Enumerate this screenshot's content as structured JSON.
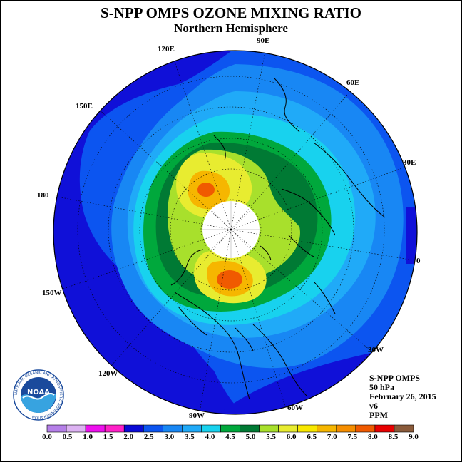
{
  "title": "S-NPP OMPS OZONE MIXING RATIO",
  "subtitle": "Northern Hemisphere",
  "longitude_labels": {
    "lon_90E": "90E",
    "lon_60E": "60E",
    "lon_30E": "30E",
    "lon_0": "0",
    "lon_30W": "30W",
    "lon_60W": "60W",
    "lon_90W": "90W",
    "lon_120W": "120W",
    "lon_150W": "150W",
    "lon_180": "180",
    "lon_150E": "150E",
    "lon_120E": "120E"
  },
  "info": {
    "instrument": "S-NPP OMPS",
    "level": "50 hPa",
    "date": "February 26, 2015",
    "version": "v6",
    "units": "PPM"
  },
  "legend": {
    "labels": [
      "0.0",
      "0.5",
      "1.0",
      "1.5",
      "2.0",
      "2.5",
      "3.0",
      "3.5",
      "4.0",
      "4.5",
      "5.0",
      "5.5",
      "6.0",
      "6.5",
      "7.0",
      "7.5",
      "8.0",
      "8.5",
      "9.0"
    ],
    "colors": [
      "#b57fe8",
      "#dcb2f2",
      "#ee10ee",
      "#ff20c8",
      "#0a0ad6",
      "#0c55f0",
      "#1887f4",
      "#20aaf8",
      "#18d2ee",
      "#00a83c",
      "#007a34",
      "#a8e02c",
      "#e8ec30",
      "#f8e800",
      "#f6b600",
      "#f68e00",
      "#f05a00",
      "#e80000",
      "#8a5a3a"
    ]
  },
  "logo": {
    "text": "NOAA",
    "ring_text": "NATIONAL OCEANIC AND ATMOSPHERIC ADMINISTRATION"
  },
  "map_colors": {
    "bg_deep": "#1010d8",
    "blue_2": "#0c55f0",
    "blue_25": "#1887f4",
    "blue_3": "#20aaf8",
    "cyan": "#18d2ee",
    "green_mid": "#00a83c",
    "green_dark": "#007a34",
    "lime": "#a8e02c",
    "yellow": "#f8e800",
    "orange": "#f6b600",
    "red_orange": "#f05a00",
    "polar_cap": "#ffffff"
  }
}
